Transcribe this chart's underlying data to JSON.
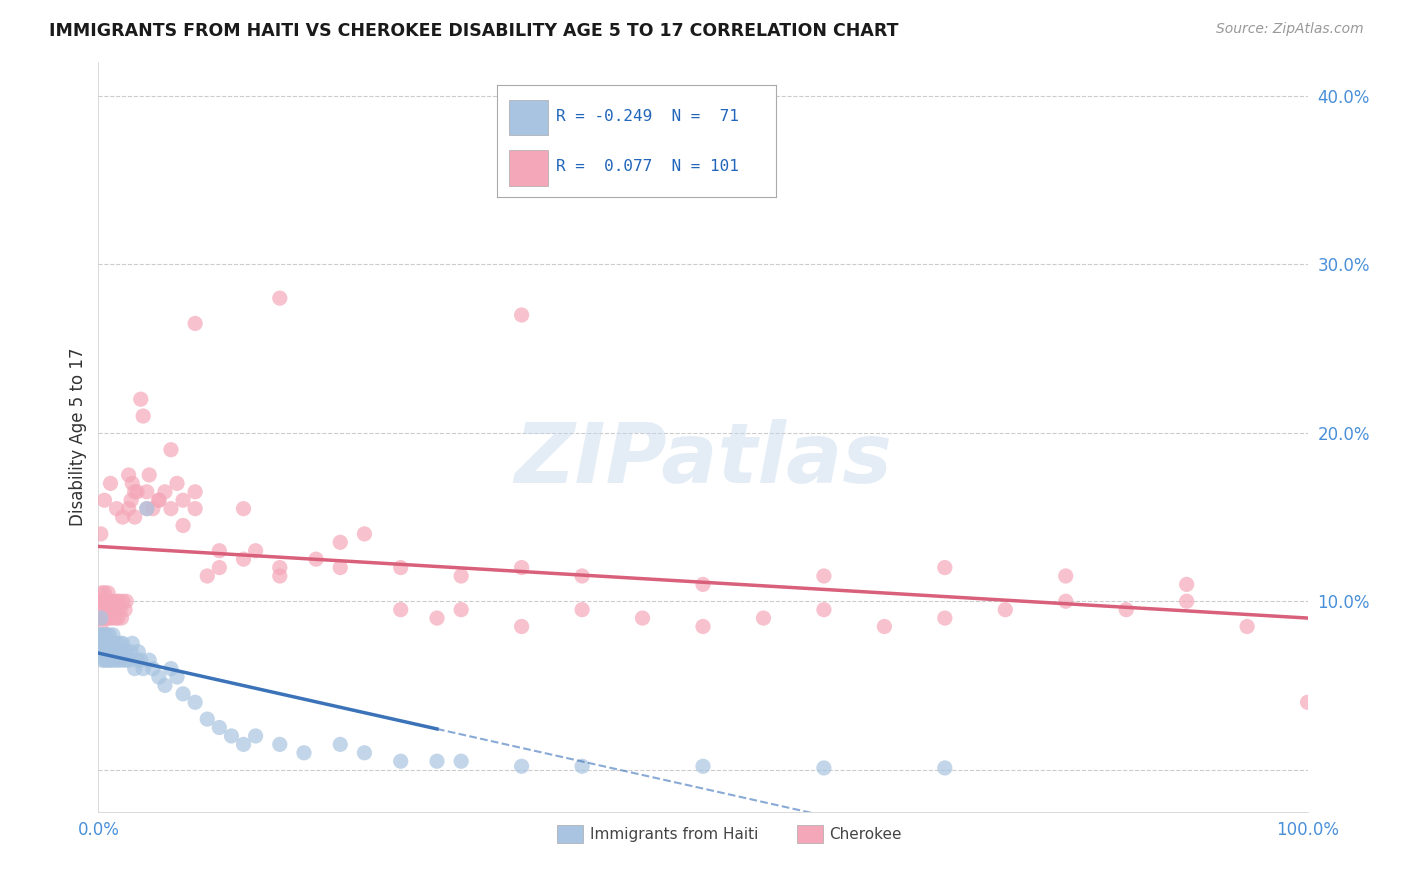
{
  "title": "IMMIGRANTS FROM HAITI VS CHEROKEE DISABILITY AGE 5 TO 17 CORRELATION CHART",
  "source": "Source: ZipAtlas.com",
  "ylabel": "Disability Age 5 to 17",
  "yticks": [
    0.0,
    0.1,
    0.2,
    0.3,
    0.4
  ],
  "ytick_labels": [
    "",
    "10.0%",
    "20.0%",
    "30.0%",
    "40.0%"
  ],
  "xlim": [
    0.0,
    1.0
  ],
  "ylim": [
    -0.025,
    0.42
  ],
  "legend_haiti_R": "-0.249",
  "legend_haiti_N": "71",
  "legend_cherokee_R": "0.077",
  "legend_cherokee_N": "101",
  "haiti_color": "#a8c4e0",
  "cherokee_color": "#f4a7b9",
  "haiti_line_color": "#3b72b8",
  "cherokee_line_color": "#d9607a",
  "watermark_text": "ZIPatlas",
  "background_color": "#ffffff",
  "grid_color": "#cccccc",
  "haiti_scatter_x": [
    0.001,
    0.001,
    0.002,
    0.002,
    0.002,
    0.003,
    0.003,
    0.004,
    0.004,
    0.005,
    0.005,
    0.005,
    0.006,
    0.006,
    0.007,
    0.007,
    0.008,
    0.008,
    0.009,
    0.009,
    0.01,
    0.01,
    0.011,
    0.012,
    0.012,
    0.013,
    0.014,
    0.015,
    0.015,
    0.016,
    0.017,
    0.018,
    0.019,
    0.02,
    0.02,
    0.022,
    0.023,
    0.025,
    0.027,
    0.028,
    0.03,
    0.032,
    0.033,
    0.035,
    0.037,
    0.04,
    0.042,
    0.045,
    0.05,
    0.055,
    0.06,
    0.065,
    0.07,
    0.08,
    0.09,
    0.1,
    0.11,
    0.12,
    0.13,
    0.15,
    0.17,
    0.2,
    0.22,
    0.25,
    0.28,
    0.3,
    0.35,
    0.4,
    0.5,
    0.6,
    0.7
  ],
  "haiti_scatter_y": [
    0.075,
    0.08,
    0.07,
    0.08,
    0.09,
    0.065,
    0.075,
    0.07,
    0.08,
    0.065,
    0.075,
    0.08,
    0.07,
    0.075,
    0.065,
    0.08,
    0.075,
    0.07,
    0.065,
    0.08,
    0.075,
    0.07,
    0.065,
    0.075,
    0.08,
    0.07,
    0.065,
    0.07,
    0.075,
    0.065,
    0.07,
    0.075,
    0.065,
    0.07,
    0.075,
    0.065,
    0.07,
    0.065,
    0.07,
    0.075,
    0.06,
    0.065,
    0.07,
    0.065,
    0.06,
    0.155,
    0.065,
    0.06,
    0.055,
    0.05,
    0.06,
    0.055,
    0.045,
    0.04,
    0.03,
    0.025,
    0.02,
    0.015,
    0.02,
    0.015,
    0.01,
    0.015,
    0.01,
    0.005,
    0.005,
    0.005,
    0.002,
    0.002,
    0.002,
    0.001,
    0.001
  ],
  "cherokee_scatter_x": [
    0.001,
    0.001,
    0.002,
    0.002,
    0.003,
    0.003,
    0.004,
    0.004,
    0.005,
    0.005,
    0.006,
    0.006,
    0.007,
    0.007,
    0.008,
    0.008,
    0.009,
    0.01,
    0.01,
    0.011,
    0.012,
    0.013,
    0.014,
    0.015,
    0.015,
    0.016,
    0.017,
    0.018,
    0.019,
    0.02,
    0.022,
    0.023,
    0.025,
    0.027,
    0.028,
    0.03,
    0.032,
    0.035,
    0.037,
    0.04,
    0.042,
    0.045,
    0.05,
    0.055,
    0.06,
    0.065,
    0.07,
    0.08,
    0.09,
    0.1,
    0.12,
    0.13,
    0.15,
    0.18,
    0.2,
    0.22,
    0.25,
    0.28,
    0.3,
    0.35,
    0.4,
    0.45,
    0.5,
    0.55,
    0.6,
    0.65,
    0.7,
    0.75,
    0.8,
    0.85,
    0.9,
    0.95,
    1.0,
    0.002,
    0.005,
    0.01,
    0.015,
    0.02,
    0.025,
    0.03,
    0.04,
    0.05,
    0.06,
    0.07,
    0.08,
    0.1,
    0.12,
    0.15,
    0.2,
    0.25,
    0.3,
    0.35,
    0.4,
    0.5,
    0.6,
    0.7,
    0.8,
    0.9,
    0.35,
    0.15,
    0.08
  ],
  "cherokee_scatter_y": [
    0.09,
    0.1,
    0.085,
    0.1,
    0.09,
    0.105,
    0.095,
    0.1,
    0.09,
    0.105,
    0.095,
    0.1,
    0.09,
    0.1,
    0.095,
    0.105,
    0.09,
    0.095,
    0.1,
    0.09,
    0.095,
    0.1,
    0.09,
    0.1,
    0.095,
    0.09,
    0.1,
    0.095,
    0.09,
    0.1,
    0.095,
    0.1,
    0.175,
    0.16,
    0.17,
    0.15,
    0.165,
    0.22,
    0.21,
    0.165,
    0.175,
    0.155,
    0.16,
    0.165,
    0.19,
    0.17,
    0.16,
    0.165,
    0.115,
    0.13,
    0.125,
    0.13,
    0.115,
    0.125,
    0.135,
    0.14,
    0.095,
    0.09,
    0.095,
    0.085,
    0.095,
    0.09,
    0.085,
    0.09,
    0.095,
    0.085,
    0.09,
    0.095,
    0.1,
    0.095,
    0.1,
    0.085,
    0.04,
    0.14,
    0.16,
    0.17,
    0.155,
    0.15,
    0.155,
    0.165,
    0.155,
    0.16,
    0.155,
    0.145,
    0.155,
    0.12,
    0.155,
    0.12,
    0.12,
    0.12,
    0.115,
    0.12,
    0.115,
    0.11,
    0.115,
    0.12,
    0.115,
    0.11,
    0.27,
    0.28,
    0.265
  ]
}
